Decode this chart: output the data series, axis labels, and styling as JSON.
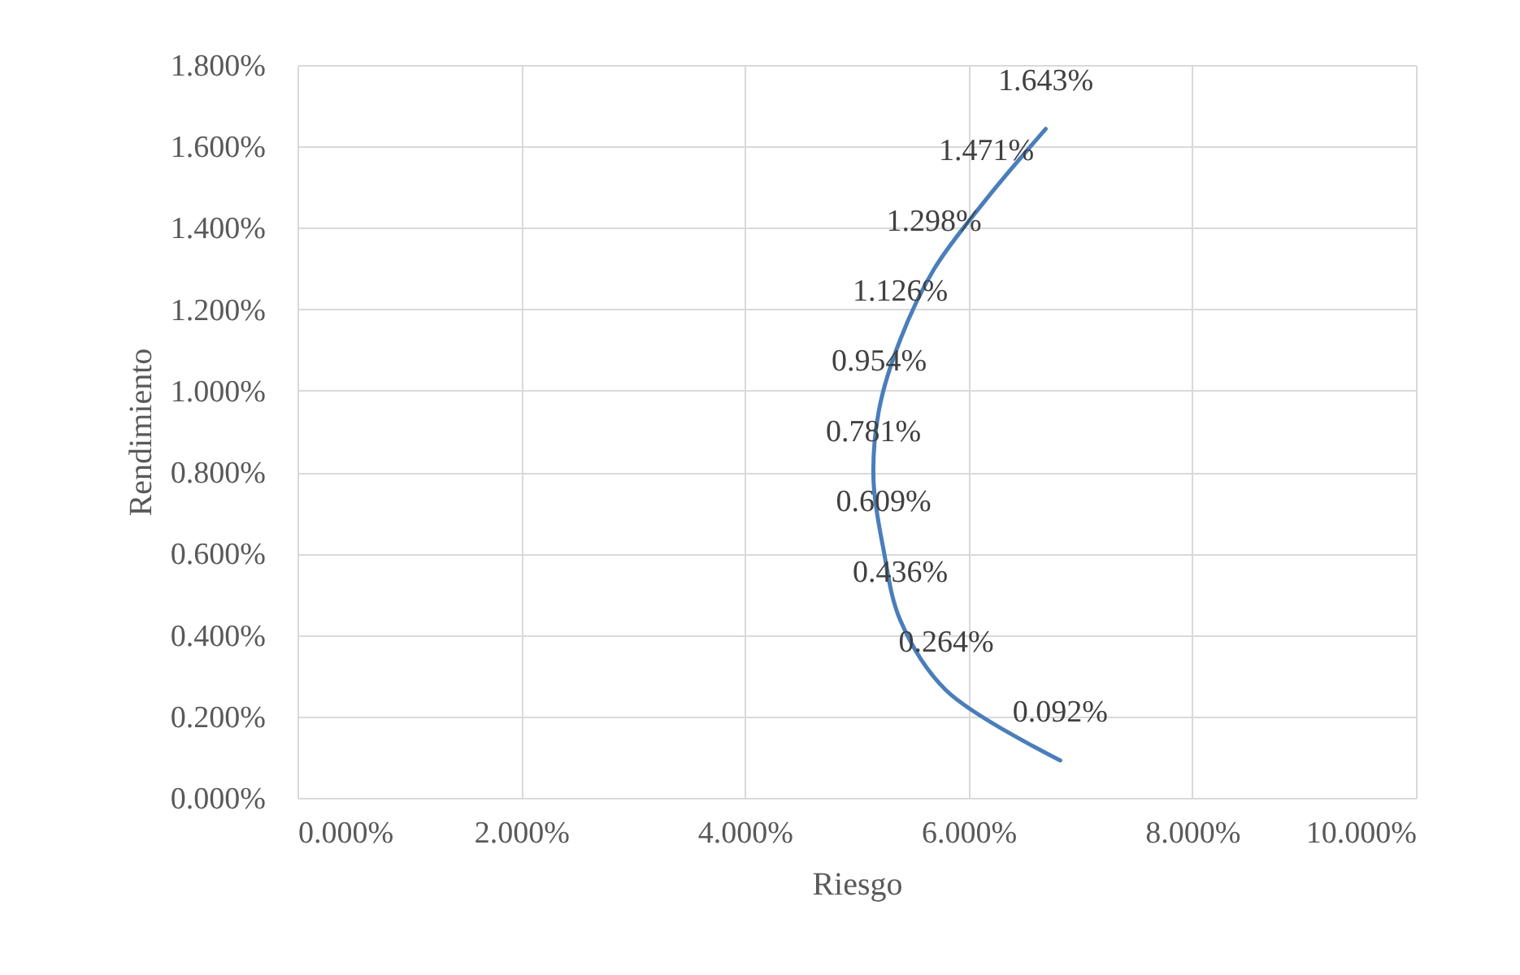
{
  "chart_data": {
    "type": "line",
    "xlabel": "Riesgo",
    "ylabel": "Rendimiento",
    "x": [
      6.82,
      5.8,
      5.39,
      5.24,
      5.15,
      5.2,
      5.39,
      5.69,
      6.16,
      6.69
    ],
    "series": [
      {
        "color": "#4a7ebb",
        "values": [
          0.092,
          0.264,
          0.436,
          0.609,
          0.781,
          0.954,
          1.126,
          1.298,
          1.471,
          1.643
        ],
        "value_labels": [
          "0.092%",
          "0.264%",
          "0.436%",
          "0.609%",
          "0.781%",
          "0.954%",
          "1.126%",
          "1.298%",
          "1.471%",
          "1.643%"
        ]
      }
    ],
    "xlim": [
      0,
      10
    ],
    "xticks": [
      {
        "value": 0,
        "label": "0.000%"
      },
      {
        "value": 2,
        "label": "2.000%"
      },
      {
        "value": 4,
        "label": "4.000%"
      },
      {
        "value": 6,
        "label": "6.000%"
      },
      {
        "value": 8,
        "label": "8.000%"
      },
      {
        "value": 10,
        "label": "10.000%"
      }
    ],
    "ylim": [
      0,
      1.8
    ],
    "yticks": [
      {
        "value": 0,
        "label": "0.000%"
      },
      {
        "value": 0.2,
        "label": "0.200%"
      },
      {
        "value": 0.4,
        "label": "0.400%"
      },
      {
        "value": 0.6,
        "label": "0.600%"
      },
      {
        "value": 0.8,
        "label": "0.800%"
      },
      {
        "value": 1.0,
        "label": "1.000%"
      },
      {
        "value": 1.2,
        "label": "1.200%"
      },
      {
        "value": 1.4,
        "label": "1.400%"
      },
      {
        "value": 1.6,
        "label": "1.600%"
      },
      {
        "value": 1.8,
        "label": "1.800%"
      }
    ],
    "grid": true,
    "marker": "none",
    "line_style": "solid"
  }
}
